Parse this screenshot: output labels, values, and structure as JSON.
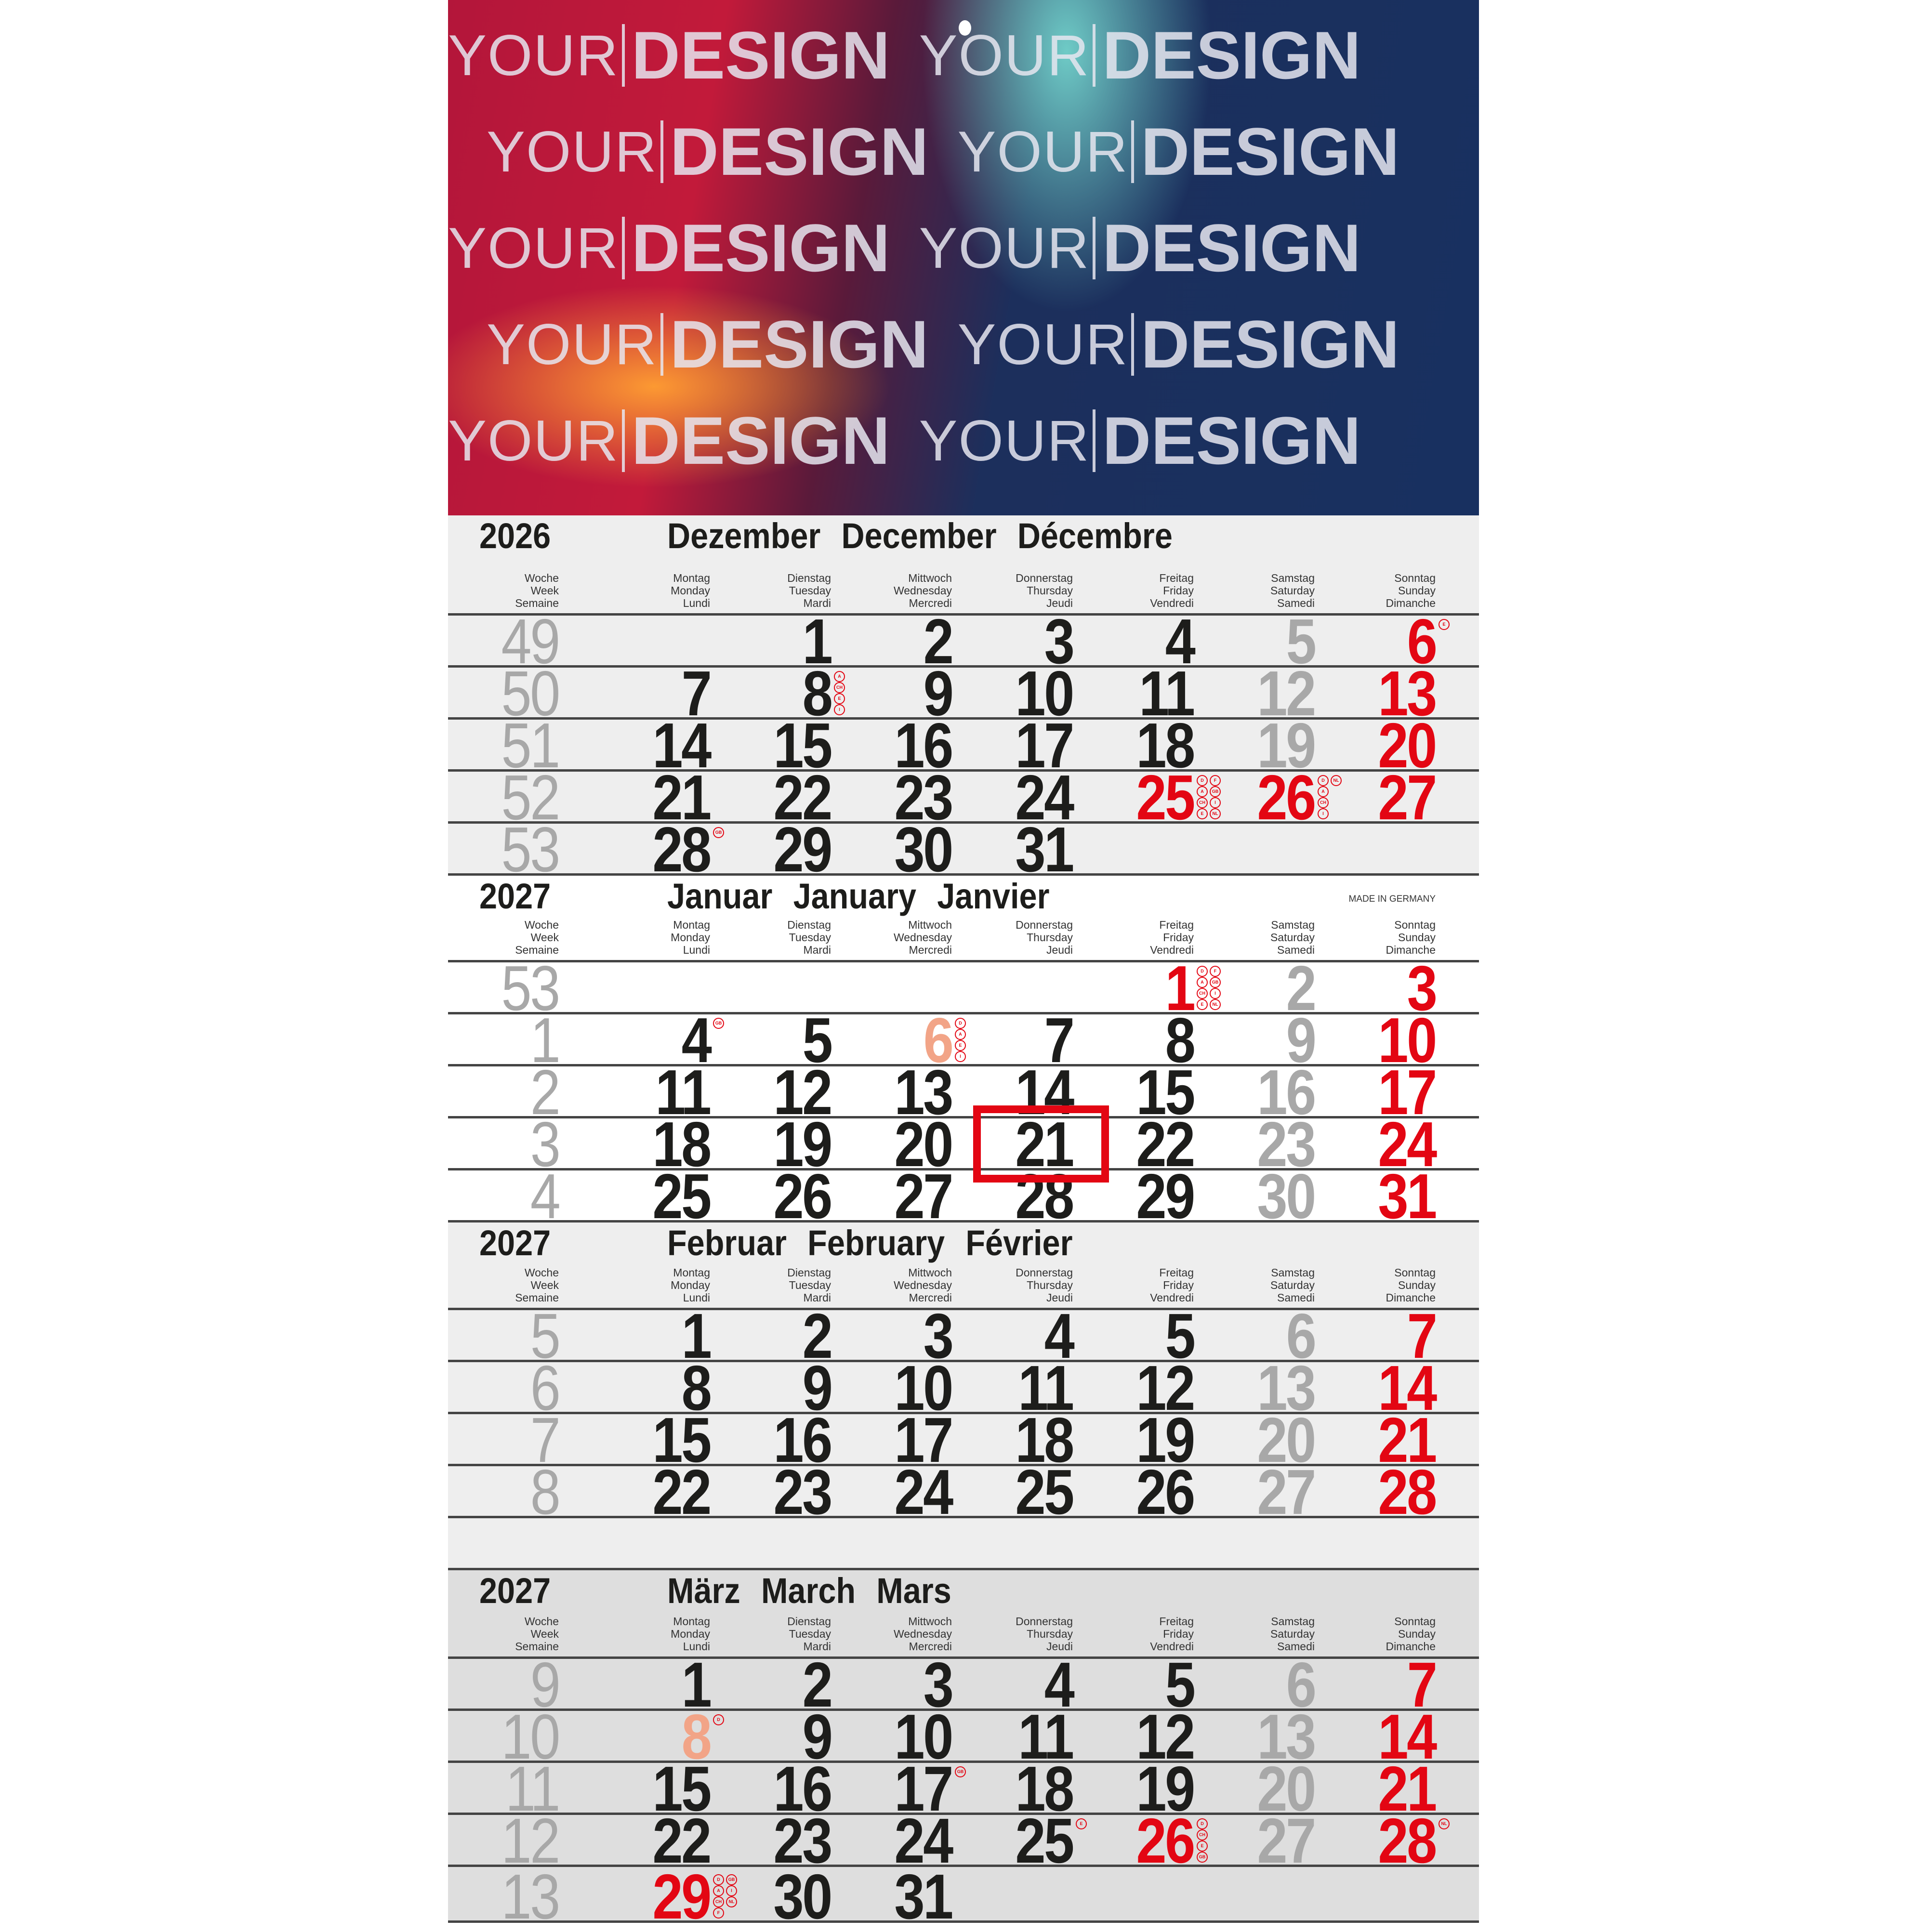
{
  "cover": {
    "word_1": "YOUR",
    "word_2": "DESIGN",
    "colors": [
      "#c21a3a",
      "#ff9a35",
      "#7cd8d0",
      "#183060"
    ]
  },
  "weekday_header": {
    "week": [
      "Woche",
      "Week",
      "Semaine"
    ],
    "days": [
      [
        "Montag",
        "Monday",
        "Lundi"
      ],
      [
        "Dienstag",
        "Tuesday",
        "Mardi"
      ],
      [
        "Mittwoch",
        "Wednesday",
        "Mercredi"
      ],
      [
        "Donnerstag",
        "Thursday",
        "Jeudi"
      ],
      [
        "Freitag",
        "Friday",
        "Vendredi"
      ],
      [
        "Samstag",
        "Saturday",
        "Samedi"
      ],
      [
        "Sonntag",
        "Sunday",
        "Dimanche"
      ]
    ]
  },
  "made_in": "MADE IN GERMANY",
  "colors": {
    "text": "#1d1d1b",
    "saturday": "#a8a8a8",
    "sunday_holiday": "#e30613",
    "regional_holiday": "#f2a487",
    "highlight": "#e30613"
  },
  "highlighted_date": {
    "month": "Januar",
    "day": 21
  },
  "months": [
    {
      "year": "2026",
      "names": [
        "Dezember",
        "December",
        "Décembre"
      ],
      "bg": "light",
      "weeks": [
        {
          "week": "49",
          "days": [
            "",
            "1",
            "2",
            "3",
            "4",
            "5",
            "6"
          ]
        },
        {
          "week": "50",
          "days": [
            "7",
            "8",
            "9",
            "10",
            "11",
            "12",
            "13"
          ]
        },
        {
          "week": "51",
          "days": [
            "14",
            "15",
            "16",
            "17",
            "18",
            "19",
            "20"
          ]
        },
        {
          "week": "52",
          "days": [
            "21",
            "22",
            "23",
            "24",
            "25",
            "26",
            "27"
          ]
        },
        {
          "week": "53",
          "days": [
            "28",
            "29",
            "30",
            "31",
            "",
            "",
            ""
          ]
        }
      ],
      "red_days": [
        "25",
        "26"
      ],
      "salmon_days": [],
      "holidays": {
        "6": [
          "E"
        ],
        "8": [
          "A",
          "CH",
          "E",
          "I"
        ],
        "25": [
          "D",
          "A",
          "CH",
          "E",
          "F",
          "GB",
          "I",
          "NL"
        ],
        "26": [
          "D",
          "A",
          "CH",
          "I",
          "NL"
        ],
        "28": [
          "GB"
        ]
      }
    },
    {
      "year": "2027",
      "names": [
        "Januar",
        "January",
        "Janvier"
      ],
      "bg": "white",
      "show_made_in": true,
      "weeks": [
        {
          "week": "53",
          "days": [
            "",
            "",
            "",
            "",
            "1",
            "2",
            "3"
          ]
        },
        {
          "week": "1",
          "days": [
            "4",
            "5",
            "6",
            "7",
            "8",
            "9",
            "10"
          ]
        },
        {
          "week": "2",
          "days": [
            "11",
            "12",
            "13",
            "14",
            "15",
            "16",
            "17"
          ]
        },
        {
          "week": "3",
          "days": [
            "18",
            "19",
            "20",
            "21",
            "22",
            "23",
            "24"
          ]
        },
        {
          "week": "4",
          "days": [
            "25",
            "26",
            "27",
            "28",
            "29",
            "30",
            "31"
          ]
        }
      ],
      "red_days": [
        "1"
      ],
      "salmon_days": [
        "6"
      ],
      "holidays": {
        "1": [
          "D",
          "A",
          "CH",
          "E",
          "F",
          "GB",
          "I",
          "NL"
        ],
        "4": [
          "GB"
        ],
        "6": [
          "D",
          "A",
          "E",
          "I"
        ]
      }
    },
    {
      "year": "2027",
      "names": [
        "Februar",
        "February",
        "Février"
      ],
      "bg": "light",
      "weeks": [
        {
          "week": "5",
          "days": [
            "1",
            "2",
            "3",
            "4",
            "5",
            "6",
            "7"
          ]
        },
        {
          "week": "6",
          "days": [
            "8",
            "9",
            "10",
            "11",
            "12",
            "13",
            "14"
          ]
        },
        {
          "week": "7",
          "days": [
            "15",
            "16",
            "17",
            "18",
            "19",
            "20",
            "21"
          ]
        },
        {
          "week": "8",
          "days": [
            "22",
            "23",
            "24",
            "25",
            "26",
            "27",
            "28"
          ]
        }
      ],
      "red_days": [],
      "salmon_days": [],
      "holidays": {},
      "trailing_blank": true
    },
    {
      "year": "2027",
      "names": [
        "März",
        "March",
        "Mars"
      ],
      "bg": "dark",
      "weeks": [
        {
          "week": "9",
          "days": [
            "1",
            "2",
            "3",
            "4",
            "5",
            "6",
            "7"
          ]
        },
        {
          "week": "10",
          "days": [
            "8",
            "9",
            "10",
            "11",
            "12",
            "13",
            "14"
          ]
        },
        {
          "week": "11",
          "days": [
            "15",
            "16",
            "17",
            "18",
            "19",
            "20",
            "21"
          ]
        },
        {
          "week": "12",
          "days": [
            "22",
            "23",
            "24",
            "25",
            "26",
            "27",
            "28"
          ]
        },
        {
          "week": "13",
          "days": [
            "29",
            "30",
            "31",
            "",
            "",
            "",
            ""
          ]
        }
      ],
      "red_days": [
        "26",
        "29"
      ],
      "salmon_days": [
        "8"
      ],
      "holidays": {
        "8": [
          "D"
        ],
        "17": [
          "GB"
        ],
        "25": [
          "E"
        ],
        "26": [
          "D",
          "CH",
          "E",
          "GB"
        ],
        "28": [
          "NL"
        ],
        "29": [
          "D",
          "A",
          "CH",
          "F",
          "GB",
          "I",
          "NL"
        ]
      }
    }
  ]
}
